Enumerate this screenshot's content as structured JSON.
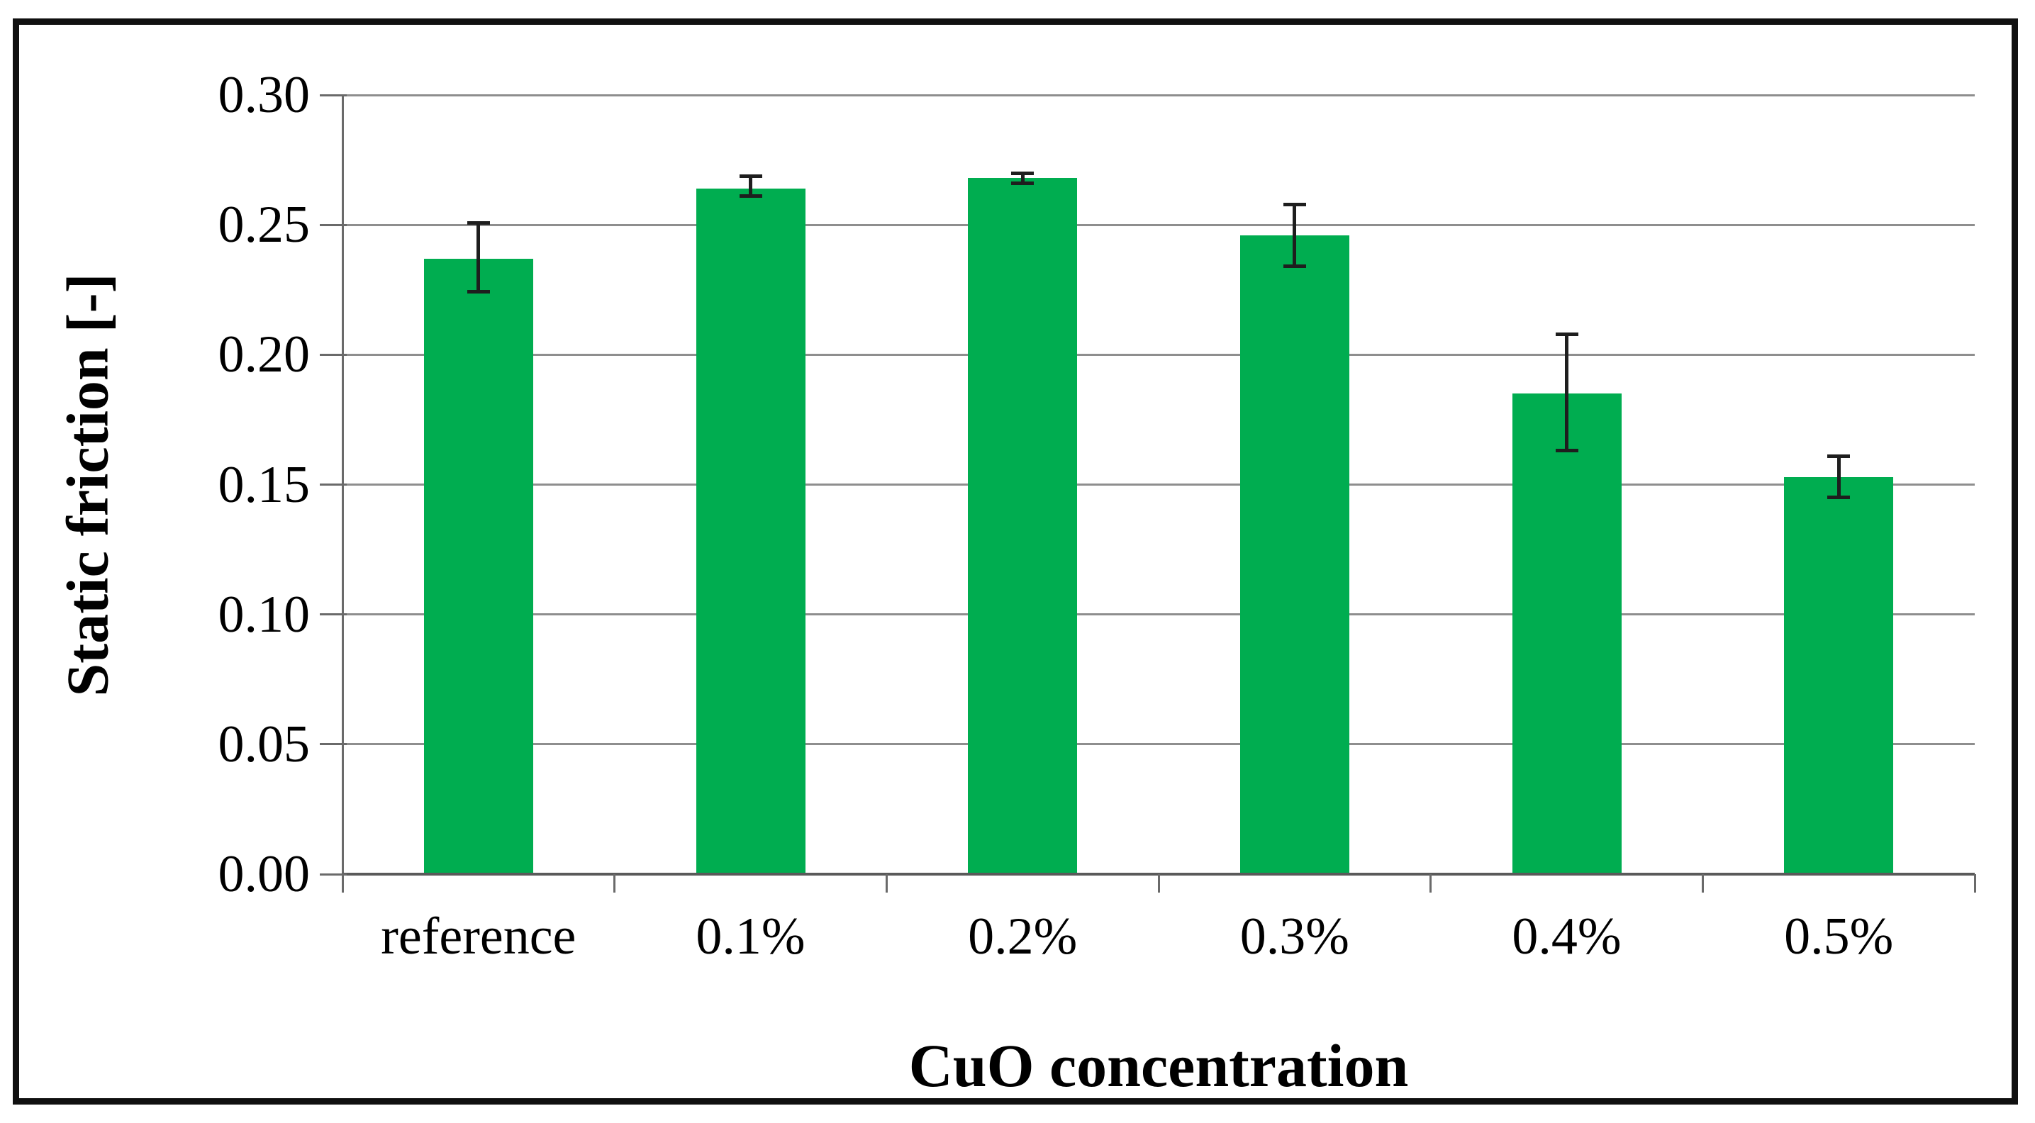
{
  "chart_data": {
    "type": "bar",
    "title": "",
    "xlabel": "CuO concentration",
    "ylabel": "Static friction [-]",
    "categories": [
      "reference",
      "0.1%",
      "0.2%",
      "0.3%",
      "0.4%",
      "0.5%"
    ],
    "values": [
      0.237,
      0.264,
      0.268,
      0.246,
      0.185,
      0.153
    ],
    "error_plus": [
      0.014,
      0.005,
      0.002,
      0.012,
      0.023,
      0.008
    ],
    "error_minus": [
      0.013,
      0.003,
      0.002,
      0.012,
      0.022,
      0.008
    ],
    "ylim": [
      0.0,
      0.3
    ],
    "ytick_step": 0.05,
    "ytick_labels": [
      "0.00",
      "0.05",
      "0.10",
      "0.15",
      "0.20",
      "0.25",
      "0.30"
    ],
    "grid": true,
    "legend": "none",
    "colors": {
      "bar": "#00AD50",
      "error_bar": "#1e1e1e",
      "gridline": "#8e8e8e",
      "axis": "#6a6a6a",
      "baseline": "#5a5a5a",
      "frame": "#101010",
      "text": "#000000",
      "background": "#ffffff"
    }
  }
}
